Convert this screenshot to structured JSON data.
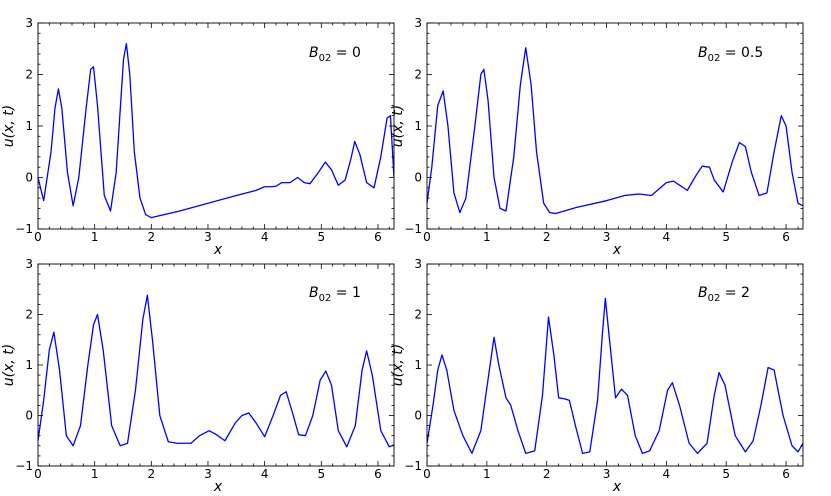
{
  "figure": {
    "background": "#ffffff",
    "line_color": "#0000ff"
  },
  "chart_data": [
    {
      "type": "line",
      "annotation": {
        "symbol": "B",
        "subscript": "02",
        "rest": " = 0"
      },
      "xlabel": "x",
      "ylabel": "u(x, t)",
      "xlim": [
        0,
        6.283
      ],
      "ylim": [
        -1,
        3
      ],
      "xticks": [
        "0",
        "1",
        "2",
        "3",
        "4",
        "5",
        "6"
      ],
      "yticks": [
        "−1",
        "0",
        "1",
        "2",
        "3"
      ],
      "series": [
        {
          "color": "#0000ff",
          "x": [
            0,
            0.1,
            0.23,
            0.3,
            0.36,
            0.42,
            0.52,
            0.62,
            0.72,
            0.85,
            0.93,
            0.98,
            1.05,
            1.17,
            1.28,
            1.38,
            1.45,
            1.51,
            1.56,
            1.62,
            1.7,
            1.8,
            1.9,
            2.0,
            2.5,
            3.0,
            3.5,
            3.85,
            4.0,
            4.1,
            4.2,
            4.3,
            4.45,
            4.58,
            4.7,
            4.8,
            4.95,
            5.07,
            5.18,
            5.3,
            5.42,
            5.52,
            5.59,
            5.68,
            5.8,
            5.93,
            6.05,
            6.16,
            6.22,
            6.283
          ],
          "y": [
            0,
            -0.45,
            0.5,
            1.35,
            1.72,
            1.35,
            0.1,
            -0.55,
            0.0,
            1.35,
            2.1,
            2.15,
            1.4,
            -0.35,
            -0.65,
            0.1,
            1.3,
            2.3,
            2.6,
            2.0,
            0.5,
            -0.4,
            -0.72,
            -0.78,
            -0.65,
            -0.5,
            -0.35,
            -0.25,
            -0.18,
            -0.18,
            -0.17,
            -0.1,
            -0.1,
            0.0,
            -0.1,
            -0.12,
            0.1,
            0.3,
            0.15,
            -0.15,
            -0.05,
            0.35,
            0.7,
            0.45,
            -0.1,
            -0.2,
            0.4,
            1.15,
            1.2,
            0.0
          ]
        }
      ]
    },
    {
      "type": "line",
      "annotation": {
        "symbol": "B",
        "subscript": "02",
        "rest": " = 0.5"
      },
      "xlabel": "x",
      "ylabel": "u(x, t)",
      "xlim": [
        0,
        6.283
      ],
      "ylim": [
        -1,
        3
      ],
      "xticks": [
        "0",
        "1",
        "2",
        "3",
        "4",
        "5",
        "6"
      ],
      "yticks": [
        "−1",
        "0",
        "1",
        "2",
        "3"
      ],
      "series": [
        {
          "color": "#0000ff",
          "x": [
            0,
            0.08,
            0.18,
            0.27,
            0.35,
            0.45,
            0.55,
            0.65,
            0.8,
            0.9,
            0.95,
            1.02,
            1.12,
            1.22,
            1.32,
            1.45,
            1.56,
            1.65,
            1.74,
            1.83,
            1.95,
            2.05,
            2.15,
            2.5,
            3.0,
            3.3,
            3.55,
            3.75,
            3.9,
            4.0,
            4.12,
            4.22,
            4.35,
            4.5,
            4.6,
            4.72,
            4.8,
            4.95,
            5.1,
            5.22,
            5.32,
            5.42,
            5.55,
            5.68,
            5.8,
            5.92,
            6.0,
            6.1,
            6.2,
            6.283
          ],
          "y": [
            -0.5,
            0.2,
            1.4,
            1.68,
            1.0,
            -0.3,
            -0.68,
            -0.4,
            1.0,
            2.0,
            2.1,
            1.5,
            0.0,
            -0.6,
            -0.65,
            0.4,
            1.8,
            2.52,
            1.8,
            0.5,
            -0.5,
            -0.68,
            -0.7,
            -0.58,
            -0.45,
            -0.35,
            -0.32,
            -0.35,
            -0.2,
            -0.1,
            -0.07,
            -0.15,
            -0.25,
            0.05,
            0.22,
            0.2,
            -0.05,
            -0.28,
            0.3,
            0.68,
            0.6,
            0.1,
            -0.35,
            -0.3,
            0.5,
            1.2,
            1.0,
            0.1,
            -0.5,
            -0.55
          ]
        }
      ]
    },
    {
      "type": "line",
      "annotation": {
        "symbol": "B",
        "subscript": "02",
        "rest": " = 1"
      },
      "xlabel": "x",
      "ylabel": "u(x, t)",
      "xlim": [
        0,
        6.283
      ],
      "ylim": [
        -1,
        3
      ],
      "xticks": [
        "0",
        "1",
        "2",
        "3",
        "4",
        "5",
        "6"
      ],
      "yticks": [
        "−1",
        "0",
        "1",
        "2",
        "3"
      ],
      "series": [
        {
          "color": "#0000ff",
          "x": [
            0,
            0.1,
            0.2,
            0.28,
            0.38,
            0.5,
            0.62,
            0.75,
            0.88,
            0.98,
            1.05,
            1.15,
            1.3,
            1.45,
            1.58,
            1.72,
            1.85,
            1.93,
            2.02,
            2.15,
            2.3,
            2.45,
            2.7,
            2.85,
            3.02,
            3.15,
            3.3,
            3.48,
            3.6,
            3.72,
            3.85,
            4.0,
            4.15,
            4.28,
            4.38,
            4.48,
            4.6,
            4.72,
            4.85,
            4.98,
            5.08,
            5.18,
            5.3,
            5.45,
            5.6,
            5.72,
            5.8,
            5.9,
            6.05,
            6.2,
            6.283
          ],
          "y": [
            -0.5,
            0.3,
            1.3,
            1.65,
            0.9,
            -0.4,
            -0.6,
            -0.2,
            1.0,
            1.8,
            2.0,
            1.3,
            -0.2,
            -0.6,
            -0.55,
            0.5,
            1.9,
            2.38,
            1.5,
            0.0,
            -0.52,
            -0.55,
            -0.55,
            -0.4,
            -0.3,
            -0.38,
            -0.5,
            -0.15,
            0.0,
            0.05,
            -0.15,
            -0.42,
            0.0,
            0.4,
            0.47,
            0.1,
            -0.38,
            -0.4,
            0.0,
            0.7,
            0.88,
            0.6,
            -0.3,
            -0.62,
            -0.2,
            0.9,
            1.28,
            0.8,
            -0.3,
            -0.62,
            -0.58
          ]
        }
      ]
    },
    {
      "type": "line",
      "annotation": {
        "symbol": "B",
        "subscript": "02",
        "rest": " = 2"
      },
      "xlabel": "x",
      "ylabel": "u(x, t)",
      "xlim": [
        0,
        6.283
      ],
      "ylim": [
        -1,
        3
      ],
      "xticks": [
        "0",
        "1",
        "2",
        "3",
        "4",
        "5",
        "6"
      ],
      "yticks": [
        "−1",
        "0",
        "1",
        "2",
        "3"
      ],
      "series": [
        {
          "color": "#0000ff",
          "x": [
            0,
            0.1,
            0.18,
            0.25,
            0.33,
            0.45,
            0.6,
            0.75,
            0.9,
            1.03,
            1.12,
            1.2,
            1.32,
            1.4,
            1.52,
            1.65,
            1.8,
            1.93,
            2.03,
            2.12,
            2.2,
            2.3,
            2.38,
            2.48,
            2.6,
            2.72,
            2.85,
            2.93,
            2.98,
            3.05,
            3.15,
            3.25,
            3.35,
            3.48,
            3.6,
            3.72,
            3.88,
            4.02,
            4.1,
            4.22,
            4.38,
            4.52,
            4.68,
            4.8,
            4.88,
            4.98,
            5.15,
            5.32,
            5.45,
            5.58,
            5.7,
            5.8,
            5.95,
            6.1,
            6.2,
            6.283
          ],
          "y": [
            -0.55,
            0.2,
            0.9,
            1.2,
            0.9,
            0.1,
            -0.4,
            -0.75,
            -0.3,
            0.8,
            1.55,
            1.0,
            0.35,
            0.2,
            -0.3,
            -0.75,
            -0.7,
            0.4,
            1.95,
            1.2,
            0.35,
            0.33,
            0.3,
            -0.2,
            -0.75,
            -0.72,
            0.3,
            1.6,
            2.32,
            1.5,
            0.35,
            0.52,
            0.4,
            -0.4,
            -0.75,
            -0.7,
            -0.3,
            0.5,
            0.65,
            0.2,
            -0.55,
            -0.75,
            -0.55,
            0.4,
            0.85,
            0.6,
            -0.4,
            -0.72,
            -0.5,
            0.2,
            0.95,
            0.9,
            0.0,
            -0.6,
            -0.72,
            -0.55
          ]
        }
      ]
    }
  ]
}
